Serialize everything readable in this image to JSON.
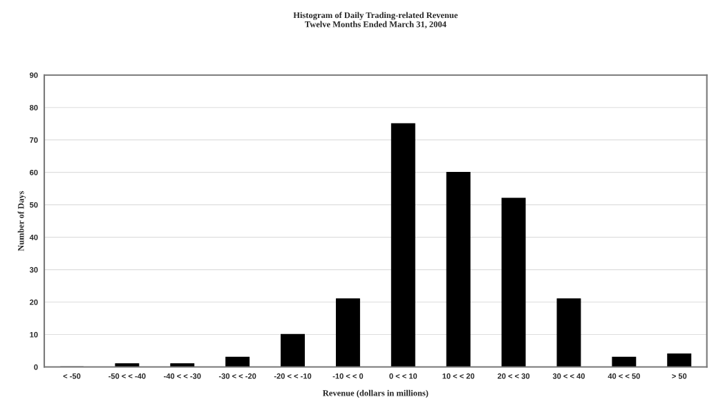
{
  "chart_data": {
    "type": "bar",
    "title": "Histogram of Daily Trading-related Revenue\nTwelve Months Ended March 31, 2004",
    "xlabel": "Revenue (dollars in millions)",
    "ylabel": "Number of Days",
    "categories": [
      "< -50",
      "-50 < < -40",
      "-40 < < -30",
      "-30 < < -20",
      "-20 < < -10",
      "-10 < < 0",
      "0 < < 10",
      "10 < < 20",
      "20 < < 30",
      "30 < < 40",
      "40 < < 50",
      "> 50"
    ],
    "values": [
      0,
      1,
      1,
      3,
      10,
      21,
      75,
      60,
      52,
      21,
      3,
      4
    ],
    "color": "#000000",
    "ylim": [
      0,
      90
    ],
    "yticks": [
      0,
      10,
      20,
      30,
      40,
      50,
      60,
      70,
      80,
      90
    ],
    "grid": "y",
    "legend": false
  }
}
